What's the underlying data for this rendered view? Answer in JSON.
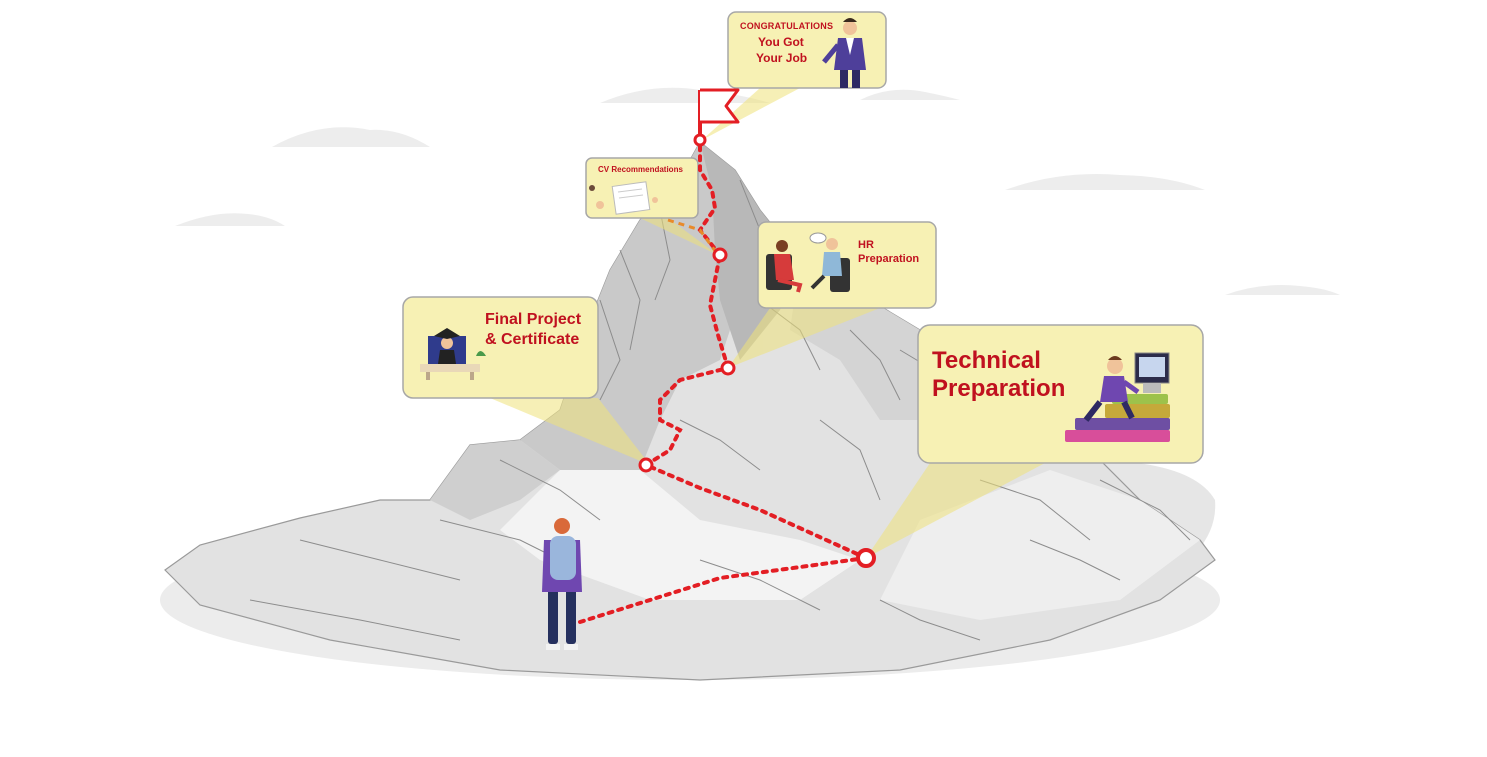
{
  "milestones": {
    "goal": {
      "line1": "CONGRATULATIONS",
      "line2": "You Got",
      "line3": "Your Job"
    },
    "cv": {
      "label": "CV Recommendations"
    },
    "hr": {
      "line1": "HR",
      "line2": "Preparation"
    },
    "final": {
      "line1": "Final Project",
      "line2": "& Certificate"
    },
    "technical": {
      "line1": "Technical",
      "line2": "Preparation"
    }
  },
  "colors": {
    "path": "#e31e24",
    "label": "#c0111f",
    "callout_fill": "#f7f1b4",
    "callout_beam": "#efe27a",
    "callout_border": "#a7a7a7",
    "mountain": "#dedede",
    "mountain_shadow": "#bdbdbd",
    "sketch": "#8d8d8d",
    "ground": "#ececec"
  },
  "icons": {
    "flag": "summit-flag-icon",
    "hiker": "hiker-icon"
  }
}
